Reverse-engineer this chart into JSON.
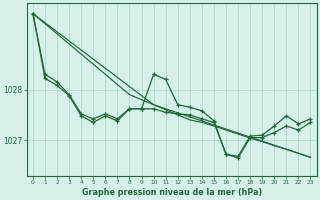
{
  "background_color": "#d8f0eb",
  "grid_color": "#a8d8cc",
  "line_color": "#1e6b35",
  "x_ticks": [
    0,
    1,
    2,
    3,
    4,
    5,
    6,
    7,
    8,
    9,
    10,
    11,
    12,
    13,
    14,
    15,
    16,
    17,
    18,
    19,
    20,
    21,
    22,
    23
  ],
  "ylim": [
    1026.3,
    1029.7
  ],
  "yticks": [
    1027,
    1028
  ],
  "xlabel": "Graphe pression niveau de la mer (hPa)",
  "line2_zigzag": [
    1029.5,
    1028.3,
    1028.15,
    1027.9,
    1027.52,
    1027.42,
    1027.52,
    1027.42,
    1027.62,
    1027.62,
    1028.3,
    1028.2,
    1027.7,
    1027.65,
    1027.58,
    1027.38,
    1026.72,
    1026.68,
    1027.08,
    1027.1,
    1027.28,
    1027.48,
    1027.32,
    1027.42
  ],
  "line3_zigzag2": [
    1029.5,
    1028.22,
    1028.08,
    1027.88,
    1027.48,
    1027.35,
    1027.48,
    1027.38,
    1027.62,
    1027.62,
    1027.62,
    1027.55,
    1027.52,
    1027.5,
    1027.42,
    1027.35,
    1026.72,
    1026.65,
    1027.05,
    1027.05,
    1027.15,
    1027.28,
    1027.2,
    1027.35
  ],
  "line4_straight1": [
    1029.5,
    1029.32,
    1029.14,
    1028.96,
    1028.78,
    1028.6,
    1028.42,
    1028.24,
    1028.06,
    1027.88,
    1027.7,
    1027.62,
    1027.54,
    1027.46,
    1027.38,
    1027.3,
    1027.22,
    1027.14,
    1027.06,
    1026.98,
    1026.9,
    1026.82,
    1026.74,
    1026.66
  ],
  "line5_straight2": [
    1029.5,
    1029.3,
    1029.1,
    1028.9,
    1028.7,
    1028.5,
    1028.3,
    1028.1,
    1027.9,
    1027.8,
    1027.7,
    1027.6,
    1027.5,
    1027.4,
    1027.35,
    1027.28,
    1027.2,
    1027.12,
    1027.04,
    1026.97,
    1026.89,
    1026.82,
    1026.74,
    1026.66
  ]
}
